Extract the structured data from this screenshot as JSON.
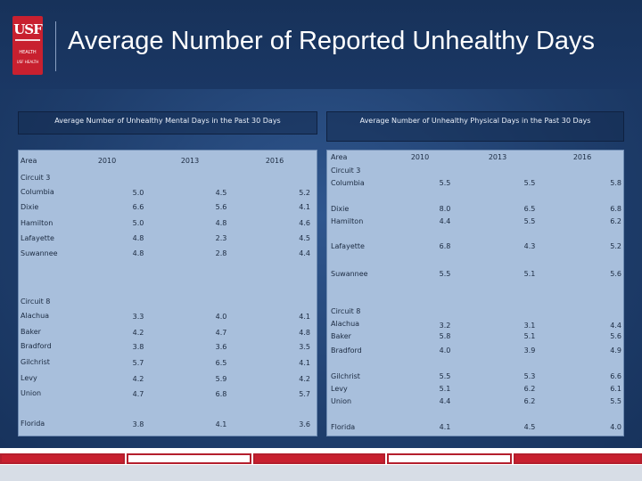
{
  "slide": {
    "title": "Average Number of Reported Unhealthy Days"
  },
  "logo": {
    "letters": "USF",
    "line1": "HEALTH",
    "line2": "USF HEALTH"
  },
  "colors": {
    "accent": "#c8202f",
    "background": "#1e3d6b",
    "table": "#a8bfdc"
  },
  "mental": {
    "caption": "Average Number of Unhealthy Mental Days in the Past 30 Days",
    "headers": {
      "area": "Area",
      "y2010": "2010",
      "y2013": "2013",
      "y2016": "2016"
    },
    "circuit3": "Circuit 3",
    "rows3": [
      {
        "area": "Columbia",
        "v2010": "5.0",
        "v2013": "4.5",
        "v2016": "5.2"
      },
      {
        "area": "Dixie",
        "v2010": "6.6",
        "v2013": "5.6",
        "v2016": "4.1"
      },
      {
        "area": "Hamilton",
        "v2010": "5.0",
        "v2013": "4.8",
        "v2016": "4.6"
      },
      {
        "area": "Lafayette",
        "v2010": "4.8",
        "v2013": "2.3",
        "v2016": "4.5"
      },
      {
        "area": "Suwannee",
        "v2010": "4.8",
        "v2013": "2.8",
        "v2016": "4.4"
      }
    ],
    "circuit8": "Circuit 8",
    "rows8": [
      {
        "area": "Alachua",
        "v2010": "3.3",
        "v2013": "4.0",
        "v2016": "4.1"
      },
      {
        "area": "Baker",
        "v2010": "4.2",
        "v2013": "4.7",
        "v2016": "4.8"
      },
      {
        "area": "Bradford",
        "v2010": "3.8",
        "v2013": "3.6",
        "v2016": "3.5"
      },
      {
        "area": "Gilchrist",
        "v2010": "5.7",
        "v2013": "6.5",
        "v2016": "4.1"
      },
      {
        "area": "Levy",
        "v2010": "4.2",
        "v2013": "5.9",
        "v2016": "4.2"
      },
      {
        "area": "Union",
        "v2010": "4.7",
        "v2013": "6.8",
        "v2016": "5.7"
      }
    ],
    "florida": {
      "area": "Florida",
      "v2010": "3.8",
      "v2013": "4.1",
      "v2016": "3.6"
    }
  },
  "physical": {
    "caption": "Average Number of Unhealthy Physical Days in the Past 30 Days",
    "headers": {
      "area": "Area",
      "y2010": "2010",
      "y2013": "2013",
      "y2016": "2016"
    },
    "circuit3": "Circuit 3",
    "rows3": [
      {
        "area": "Columbia",
        "v2010": "5.5",
        "v2013": "5.5",
        "v2016": "5.8"
      },
      {
        "area": "Dixie",
        "v2010": "8.0",
        "v2013": "6.5",
        "v2016": "6.8"
      },
      {
        "area": "Hamilton",
        "v2010": "4.4",
        "v2013": "5.5",
        "v2016": "6.2"
      },
      {
        "area": "Lafayette",
        "v2010": "6.8",
        "v2013": "4.3",
        "v2016": "5.2"
      },
      {
        "area": "Suwannee",
        "v2010": "5.5",
        "v2013": "5.1",
        "v2016": "5.6"
      }
    ],
    "circuit8": "Circuit 8",
    "rows8": [
      {
        "area": "Alachua",
        "v2010": "3.2",
        "v2013": "3.1",
        "v2016": "4.4"
      },
      {
        "area": "Baker",
        "v2010": "5.8",
        "v2013": "5.1",
        "v2016": "5.6"
      },
      {
        "area": "Bradford",
        "v2010": "4.0",
        "v2013": "3.9",
        "v2016": "4.9"
      },
      {
        "area": "Gilchrist",
        "v2010": "5.5",
        "v2013": "5.3",
        "v2016": "6.6"
      },
      {
        "area": "Levy",
        "v2010": "5.1",
        "v2013": "6.2",
        "v2016": "6.1"
      },
      {
        "area": "Union",
        "v2010": "4.4",
        "v2013": "6.2",
        "v2016": "5.5"
      }
    ],
    "florida": {
      "area": "Florida",
      "v2010": "4.1",
      "v2013": "4.5",
      "v2016": "4.0"
    }
  }
}
